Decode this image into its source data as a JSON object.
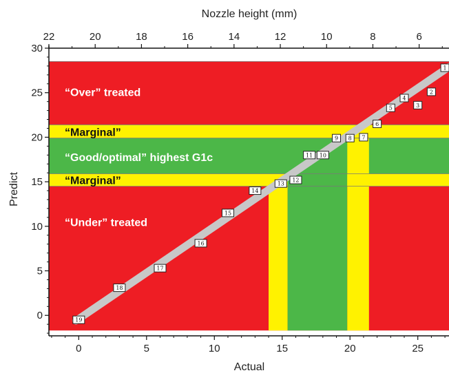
{
  "chart_data": {
    "type": "scatter",
    "title": "",
    "xlabel": "Actual",
    "ylabel": "Predict",
    "x2label": "Nozzle height (mm)",
    "xlim": [
      -2.2,
      27.3
    ],
    "ylim": [
      -2.3,
      30
    ],
    "xticks": [
      0,
      5,
      10,
      15,
      20,
      25
    ],
    "yticks": [
      0,
      5,
      10,
      15,
      20,
      25,
      30
    ],
    "x2ticks": [
      22,
      20,
      18,
      16,
      14,
      12,
      10,
      8,
      6
    ],
    "x2_to_x": {
      "22": -2.2,
      "6": 25.1
    },
    "grid": false,
    "colors": {
      "over": "#ee1d24",
      "marginal": "#fff200",
      "good": "#4cb748",
      "line": "#c8c8c8"
    },
    "zones": [
      {
        "label": "“Over” treated",
        "kind": "over",
        "y_from": 21.4,
        "y_to": 28.5,
        "label_y": 25.1
      },
      {
        "label": "“Marginal”",
        "kind": "marginal",
        "y_from": 19.9,
        "y_to": 21.4,
        "label_y": 20.6
      },
      {
        "label": "“Good/optimal” highest G1c",
        "kind": "good",
        "y_from": 15.9,
        "y_to": 19.9,
        "label_y": 17.8
      },
      {
        "label": "“Marginal”",
        "kind": "marginal",
        "y_from": 14.5,
        "y_to": 15.9,
        "label_y": 15.2
      },
      {
        "label": "“Under” treated",
        "kind": "under",
        "y_from": -1.7,
        "y_to": 14.5,
        "label_y": 10.5
      }
    ],
    "vertical_bands": [
      {
        "kind": "marginal",
        "x_from": 14.0,
        "x_to": 15.4,
        "y_to": 14.5
      },
      {
        "kind": "good",
        "x_from": 15.4,
        "x_to": 19.8,
        "y_to": 15.9
      },
      {
        "kind": "marginal",
        "x_from": 19.8,
        "x_to": 21.4,
        "y_to": 19.9
      }
    ],
    "fit_line": {
      "x": [
        -0.2,
        27.3
      ],
      "y": [
        -0.6,
        27.9
      ]
    },
    "points": [
      {
        "label": "19",
        "x": 0.0,
        "y": -0.5
      },
      {
        "label": "18",
        "x": 3.0,
        "y": 3.1
      },
      {
        "label": "17",
        "x": 6.0,
        "y": 5.3
      },
      {
        "label": "16",
        "x": 9.0,
        "y": 8.1
      },
      {
        "label": "15",
        "x": 11.0,
        "y": 11.5
      },
      {
        "label": "14",
        "x": 13.0,
        "y": 14.0
      },
      {
        "label": "13",
        "x": 14.9,
        "y": 14.8
      },
      {
        "label": "12",
        "x": 16.0,
        "y": 15.2
      },
      {
        "label": "11",
        "x": 17.0,
        "y": 18.0
      },
      {
        "label": "10",
        "x": 18.0,
        "y": 18.0
      },
      {
        "label": "9",
        "x": 19.0,
        "y": 19.9
      },
      {
        "label": "8",
        "x": 20.0,
        "y": 19.9
      },
      {
        "label": "7",
        "x": 21.0,
        "y": 20.0
      },
      {
        "label": "6",
        "x": 22.0,
        "y": 21.5
      },
      {
        "label": "5",
        "x": 23.0,
        "y": 23.3
      },
      {
        "label": "4",
        "x": 24.0,
        "y": 24.4
      },
      {
        "label": "3",
        "x": 25.0,
        "y": 23.6
      },
      {
        "label": "2",
        "x": 26.0,
        "y": 25.1
      },
      {
        "label": "1",
        "x": 27.0,
        "y": 27.8
      }
    ]
  }
}
